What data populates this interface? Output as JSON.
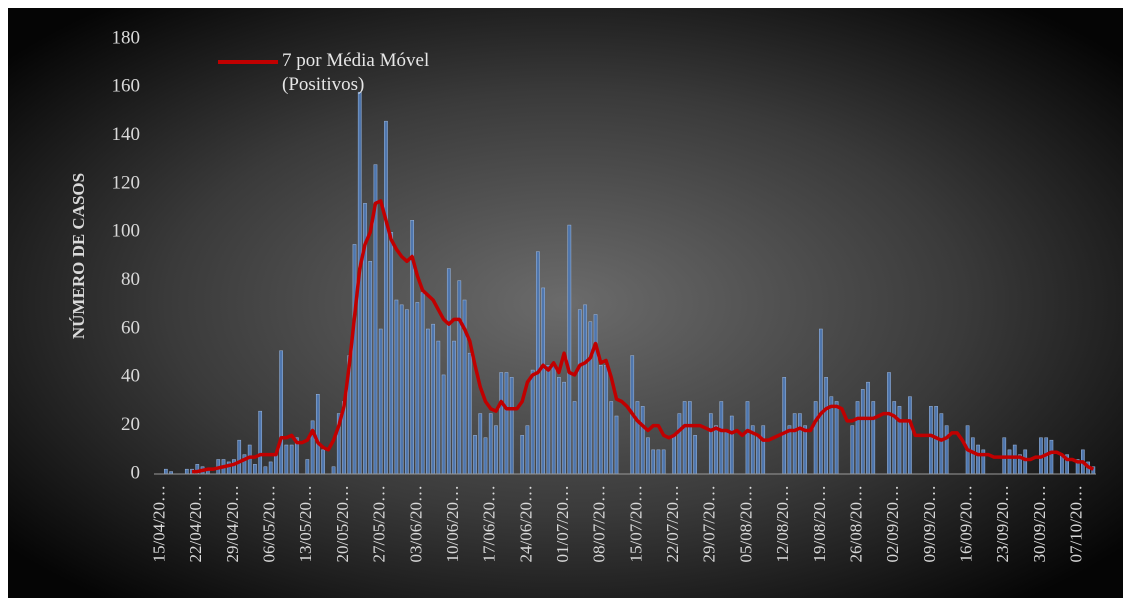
{
  "chart_data": {
    "type": "bar",
    "y_label": "NÚMERO DE CASOS",
    "ylim": [
      0,
      180
    ],
    "yticks": [
      0,
      20,
      40,
      60,
      80,
      100,
      120,
      140,
      160,
      180
    ],
    "grid": false,
    "legend": "top-left",
    "categories": [
      "15/04/20…",
      null,
      null,
      null,
      null,
      null,
      null,
      "22/04/20…",
      null,
      null,
      null,
      null,
      null,
      null,
      "29/04/20…",
      null,
      null,
      null,
      null,
      null,
      null,
      "06/05/20…",
      null,
      null,
      null,
      null,
      null,
      null,
      "13/05/20…",
      null,
      null,
      null,
      null,
      null,
      null,
      "20/05/20…",
      null,
      null,
      null,
      null,
      null,
      null,
      "27/05/20…",
      null,
      null,
      null,
      null,
      null,
      null,
      "03/06/20…",
      null,
      null,
      null,
      null,
      null,
      null,
      "10/06/20…",
      null,
      null,
      null,
      null,
      null,
      null,
      "17/06/20…",
      null,
      null,
      null,
      null,
      null,
      null,
      "24/06/20…",
      null,
      null,
      null,
      null,
      null,
      null,
      "01/07/20…",
      null,
      null,
      null,
      null,
      null,
      null,
      "08/07/20…",
      null,
      null,
      null,
      null,
      null,
      null,
      "15/07/20…",
      null,
      null,
      null,
      null,
      null,
      null,
      "22/07/20…",
      null,
      null,
      null,
      null,
      null,
      null,
      "29/07/20…",
      null,
      null,
      null,
      null,
      null,
      null,
      "05/08/20…",
      null,
      null,
      null,
      null,
      null,
      null,
      "12/08/20…",
      null,
      null,
      null,
      null,
      null,
      null,
      "19/08/20…",
      null,
      null,
      null,
      null,
      null,
      null,
      "26/08/20…",
      null,
      null,
      null,
      null,
      null,
      null,
      "02/09/20…",
      null,
      null,
      null,
      null,
      null,
      null,
      "09/09/20…",
      null,
      null,
      null,
      null,
      null,
      null,
      "16/09/20…",
      null,
      null,
      null,
      null,
      null,
      null,
      "23/09/20…",
      null,
      null,
      null,
      null,
      null,
      null,
      "30/09/20…",
      null,
      null,
      null,
      null,
      null,
      null,
      "07/10/20…",
      null,
      null,
      null
    ],
    "series": [
      {
        "type": "bar",
        "color": "#4f76ad",
        "values": [
          0,
          2,
          1,
          0,
          0,
          2,
          2,
          4,
          3,
          2,
          0,
          6,
          6,
          5,
          6,
          14,
          8,
          12,
          4,
          26,
          3,
          5,
          8,
          51,
          12,
          12,
          15,
          0,
          6,
          22,
          33,
          10,
          0,
          3,
          25,
          30,
          49,
          95,
          158,
          112,
          88,
          128,
          60,
          146,
          100,
          72,
          70,
          68,
          105,
          71,
          75,
          60,
          62,
          55,
          41,
          85,
          55,
          80,
          72,
          50,
          16,
          25,
          15,
          25,
          20,
          42,
          42,
          40,
          0,
          16,
          20,
          43,
          92,
          77,
          45,
          46,
          40,
          38,
          103,
          30,
          68,
          70,
          63,
          66,
          45,
          45,
          30,
          24,
          0,
          0,
          49,
          30,
          28,
          15,
          10,
          10,
          10,
          0,
          16,
          25,
          30,
          30,
          16,
          0,
          0,
          25,
          20,
          30,
          18,
          24,
          0,
          0,
          30,
          20,
          16,
          20,
          0,
          0,
          0,
          40,
          20,
          25,
          25,
          20,
          0,
          30,
          60,
          40,
          32,
          30,
          0,
          0,
          20,
          30,
          35,
          38,
          30,
          0,
          0,
          42,
          30,
          28,
          22,
          32,
          0,
          0,
          0,
          28,
          28,
          25,
          20,
          0,
          0,
          0,
          20,
          15,
          12,
          10,
          0,
          0,
          0,
          15,
          10,
          12,
          8,
          10,
          0,
          0,
          15,
          15,
          14,
          0,
          8,
          8,
          0,
          6,
          10,
          5,
          3
        ]
      },
      {
        "type": "line",
        "name": "7 por Média Móvel (Positivos)",
        "color": "#c00000",
        "values": [
          null,
          null,
          null,
          null,
          null,
          null,
          1,
          1,
          1.5,
          2,
          2,
          2.5,
          3,
          3.5,
          4,
          5,
          6,
          7,
          7,
          8,
          8,
          8,
          8,
          15,
          15,
          16,
          13,
          13,
          14,
          18,
          13,
          11,
          10,
          14,
          20,
          28,
          45,
          65,
          85,
          95,
          100,
          112,
          113,
          105,
          97,
          93,
          90,
          88,
          90,
          82,
          76,
          74,
          72,
          68,
          64,
          62,
          64,
          64,
          60,
          55,
          45,
          36,
          30,
          27,
          26,
          30,
          27,
          27,
          27,
          30,
          38,
          41,
          42,
          45,
          43,
          46,
          42,
          50,
          42,
          41,
          45,
          46,
          48,
          54,
          46,
          47,
          40,
          31,
          30,
          28,
          25,
          22,
          20,
          18,
          20,
          20,
          16,
          15,
          16,
          18,
          20,
          20,
          20,
          20,
          19,
          18,
          19,
          18,
          18,
          17,
          18,
          16,
          18,
          17,
          16,
          14,
          14,
          15,
          16,
          17,
          18,
          18,
          19,
          18,
          18,
          22,
          25,
          27,
          28,
          28,
          27,
          22,
          22,
          23,
          23,
          23,
          23,
          24,
          25,
          25,
          24,
          22,
          22,
          22,
          16,
          16,
          16,
          16,
          15,
          14,
          15,
          17,
          17,
          14,
          10,
          9,
          8,
          8,
          8,
          7,
          7,
          7,
          7,
          7,
          7,
          6,
          6,
          7,
          7,
          8,
          9,
          9,
          8,
          6,
          6,
          5,
          5,
          3,
          2
        ]
      }
    ]
  }
}
